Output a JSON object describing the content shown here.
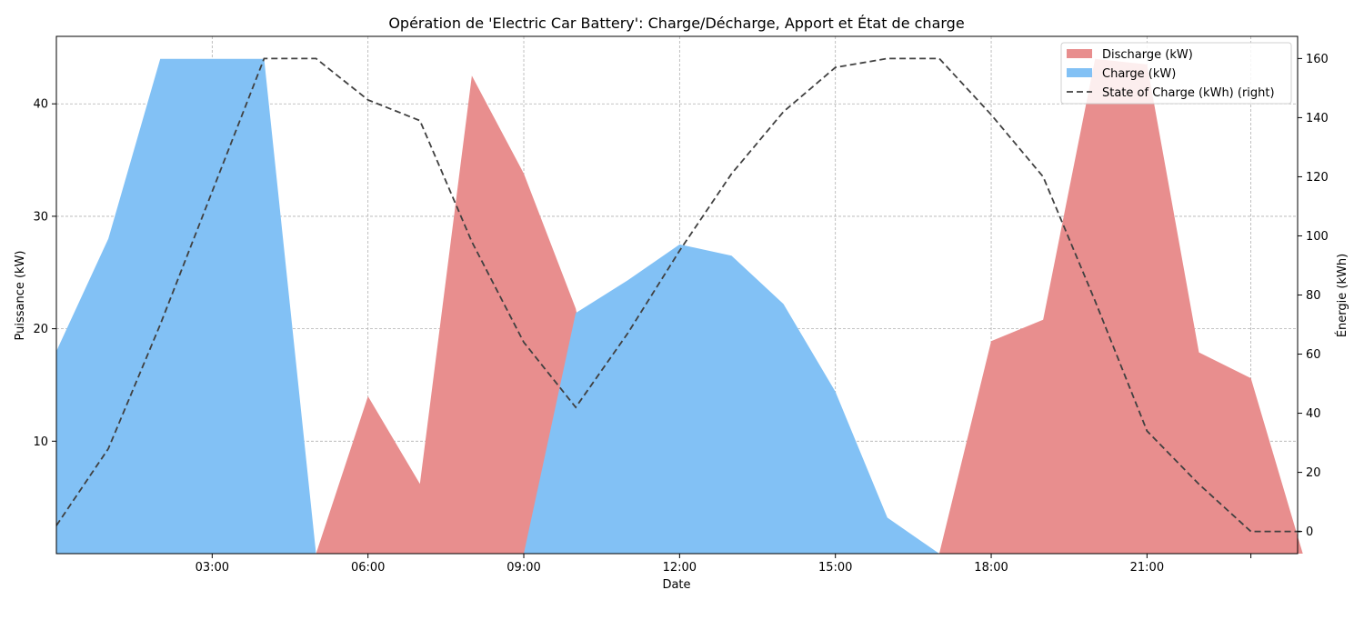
{
  "chart_data": {
    "type": "area",
    "title": "Opération de 'Electric Car Battery': Charge/Décharge, Apport et État de charge",
    "xlabel": "Date",
    "ylabel_left": "Puissance (kW)",
    "ylabel_right": "Énergie (kWh)",
    "x_hours": [
      0,
      1,
      2,
      3,
      4,
      5,
      6,
      7,
      8,
      9,
      10,
      11,
      12,
      13,
      14,
      15,
      16,
      17,
      18,
      19,
      20,
      21,
      22,
      23,
      24
    ],
    "x_ticks": [
      {
        "hour": 3,
        "label": "03:00"
      },
      {
        "hour": 6,
        "label": "06:00"
      },
      {
        "hour": 9,
        "label": "09:00"
      },
      {
        "hour": 12,
        "label": "12:00"
      },
      {
        "hour": 15,
        "label": "15:00"
      },
      {
        "hour": 18,
        "label": "18:00"
      },
      {
        "hour": 21,
        "label": "21:00"
      },
      {
        "hour": 23,
        "label": ""
      }
    ],
    "xlim": [
      0,
      23.9
    ],
    "ylim_left": [
      0,
      46
    ],
    "yticks_left": [
      10,
      20,
      30,
      40
    ],
    "ylim_right": [
      -7.5,
      167.5
    ],
    "yticks_right": [
      0,
      20,
      40,
      60,
      80,
      100,
      120,
      140,
      160
    ],
    "series": [
      {
        "name": "Discharge (kW)",
        "kind": "area",
        "axis": "left",
        "color": "#e88e8e",
        "values": [
          16.0,
          0,
          0,
          0,
          0,
          0,
          14.0,
          6.2,
          42.5,
          33.8,
          21.8,
          0,
          0,
          0,
          0,
          0,
          0,
          0,
          18.9,
          20.8,
          44.0,
          43.5,
          17.9,
          15.6,
          0
        ]
      },
      {
        "name": "Charge (kW)",
        "kind": "area",
        "axis": "left",
        "color": "#82c1f5",
        "values": [
          18.0,
          28.0,
          44.0,
          44.0,
          44.0,
          0,
          0,
          0,
          0,
          0,
          21.4,
          24.3,
          27.5,
          26.5,
          22.2,
          14.4,
          3.2,
          0,
          0,
          0,
          0,
          0,
          0,
          0,
          0
        ]
      },
      {
        "name": "State of Charge (kWh) (right)",
        "kind": "line",
        "axis": "right",
        "color": "#404040",
        "dash": "7,4",
        "values": [
          2,
          28,
          70,
          115,
          160,
          160,
          146,
          139,
          98,
          64,
          42,
          67,
          95,
          121,
          142,
          157,
          160,
          160,
          141,
          120,
          78,
          34,
          16,
          0,
          0
        ]
      }
    ],
    "grid": true,
    "legend_position": "top-right"
  }
}
